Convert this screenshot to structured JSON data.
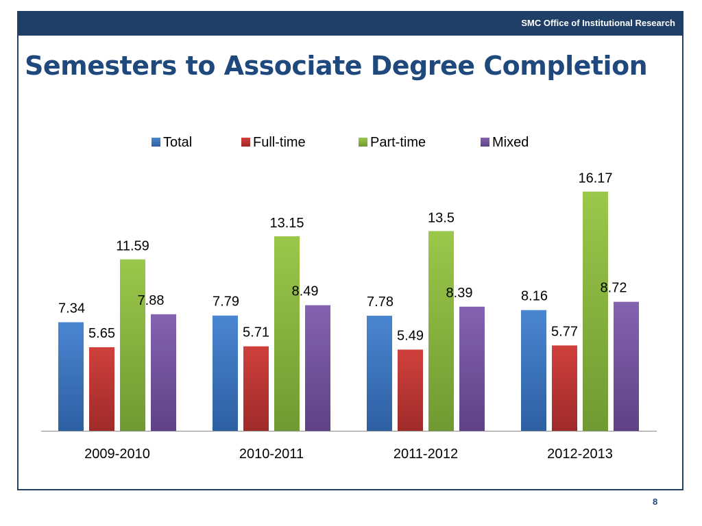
{
  "header": {
    "org_label": "SMC Office of Institutional Research"
  },
  "slide": {
    "title": "Semesters to Associate Degree Completion",
    "page_number": "8"
  },
  "chart_data": {
    "type": "bar",
    "categories": [
      "2009-2010",
      "2010-2011",
      "2011-2012",
      "2012-2013"
    ],
    "series": [
      {
        "name": "Total",
        "values": [
          7.34,
          7.79,
          7.78,
          8.16
        ]
      },
      {
        "name": "Full-time",
        "values": [
          5.65,
          5.71,
          5.49,
          5.77
        ]
      },
      {
        "name": "Part-time",
        "values": [
          11.59,
          13.15,
          13.5,
          16.17
        ]
      },
      {
        "name": "Mixed",
        "values": [
          7.88,
          8.49,
          8.39,
          8.72
        ]
      }
    ],
    "data_labels": true,
    "legend": "top",
    "grid": false,
    "ylim": [
      0,
      16.17
    ],
    "colors": {
      "Total": [
        "#2e5fa3",
        "#4a86d0"
      ],
      "Full-time": [
        "#9e2b29",
        "#d0403c"
      ],
      "Part-time": [
        "#6f9a32",
        "#9bc74a"
      ],
      "Mixed": [
        "#5e4285",
        "#8463b0"
      ]
    }
  }
}
